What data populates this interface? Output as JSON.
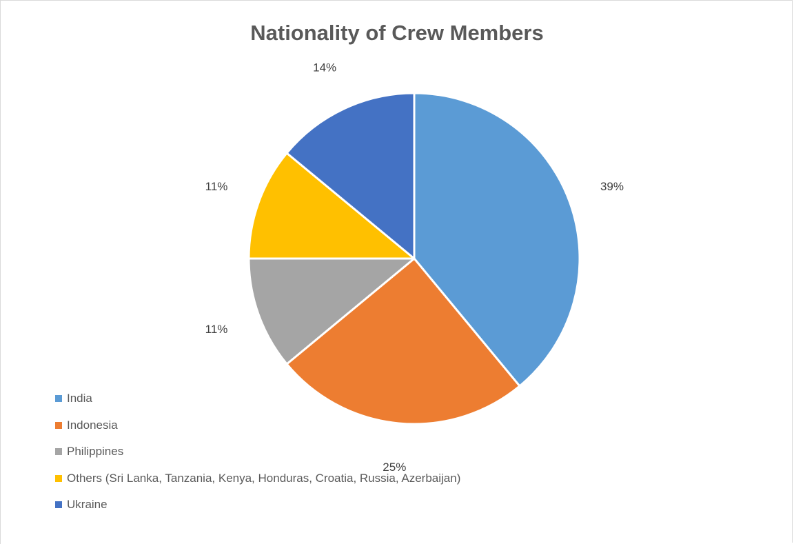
{
  "chart_data": {
    "type": "pie",
    "title": "Nationality of Crew Members",
    "categories": [
      "India",
      "Indonesia",
      "Philippines",
      "Others (Sri Lanka, Tanzania, Kenya, Honduras, Croatia, Russia, Azerbaijan)",
      "Ukraine"
    ],
    "values": [
      39,
      25,
      11,
      11,
      14
    ],
    "value_labels": [
      "39%",
      "25%",
      "11%",
      "11%",
      "14%"
    ],
    "colors": [
      "#5b9bd5",
      "#ed7d31",
      "#a5a5a5",
      "#ffc000",
      "#4472c4"
    ],
    "start_angle_deg": 0,
    "direction": "clockwise",
    "legend_position": "bottom-left",
    "slice_border_color": "#ffffff"
  }
}
